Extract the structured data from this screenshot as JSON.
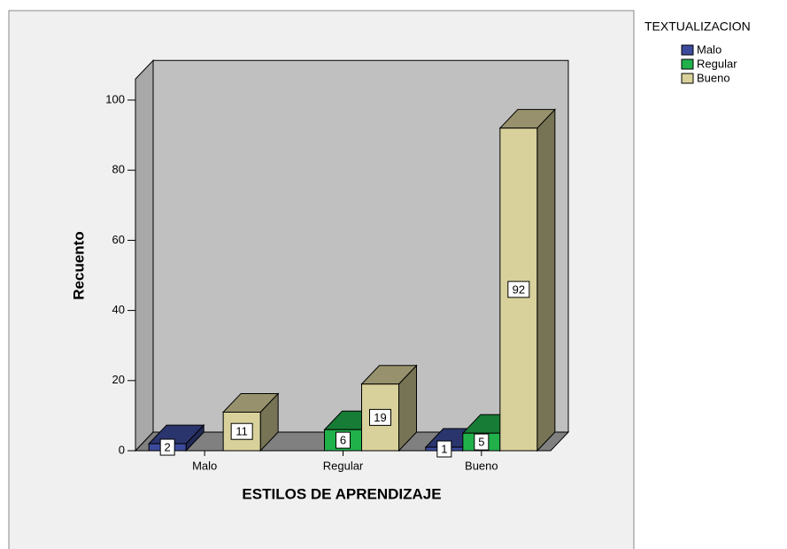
{
  "chart_data": {
    "type": "bar3d",
    "x_label": "ESTILOS DE APRENDIZAJE",
    "y_label": "Recuento",
    "legend_title": "TEXTUALIZACION",
    "legend": "right",
    "categories": [
      "Malo",
      "Regular",
      "Bueno"
    ],
    "series": [
      {
        "name": "Malo",
        "color": "#3c4a9c",
        "values": [
          2,
          null,
          1
        ]
      },
      {
        "name": "Regular",
        "color": "#21b14b",
        "values": [
          null,
          6,
          5
        ]
      },
      {
        "name": "Bueno",
        "color": "#d8d19b",
        "values": [
          11,
          19,
          92
        ]
      }
    ],
    "ylim": [
      0,
      106
    ],
    "yticks": [
      0,
      20,
      40,
      60,
      80,
      100
    ]
  }
}
